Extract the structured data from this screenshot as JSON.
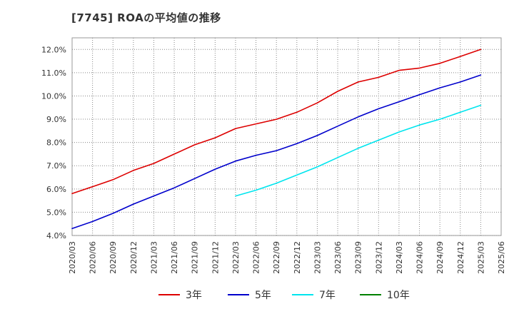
{
  "title": "[7745]  ROAの平均値の推移",
  "chart_data": {
    "type": "line",
    "title": "[7745]  ROAの平均値の推移",
    "xlabel": "",
    "ylabel": "",
    "ylim": [
      4.0,
      12.5
    ],
    "y_ticks": [
      "4.0%",
      "5.0%",
      "6.0%",
      "7.0%",
      "8.0%",
      "9.0%",
      "10.0%",
      "11.0%",
      "12.0%"
    ],
    "grid": true,
    "legend_position": "bottom",
    "x": [
      "2020/03",
      "2020/06",
      "2020/09",
      "2020/12",
      "2021/03",
      "2021/06",
      "2021/09",
      "2021/12",
      "2022/03",
      "2022/06",
      "2022/09",
      "2022/12",
      "2023/03",
      "2023/06",
      "2023/09",
      "2023/12",
      "2024/03",
      "2024/06",
      "2024/09",
      "2024/12",
      "2025/03",
      "2025/06"
    ],
    "series": [
      {
        "name": "3年",
        "color": "#dd0000",
        "values": [
          5.8,
          6.1,
          6.4,
          6.8,
          7.1,
          7.5,
          7.9,
          8.2,
          8.6,
          8.8,
          9.0,
          9.3,
          9.7,
          10.2,
          10.6,
          10.8,
          11.1,
          11.2,
          11.4,
          11.7,
          12.0,
          null
        ]
      },
      {
        "name": "5年",
        "color": "#0000cc",
        "values": [
          4.3,
          4.6,
          4.95,
          5.35,
          5.7,
          6.05,
          6.45,
          6.85,
          7.2,
          7.45,
          7.65,
          7.95,
          8.3,
          8.7,
          9.1,
          9.45,
          9.75,
          10.05,
          10.35,
          10.6,
          10.9,
          null
        ]
      },
      {
        "name": "7年",
        "color": "#00e5ee",
        "values": [
          null,
          null,
          null,
          null,
          null,
          null,
          null,
          null,
          5.7,
          5.95,
          6.25,
          6.6,
          6.95,
          7.35,
          7.75,
          8.1,
          8.45,
          8.75,
          9.0,
          9.3,
          9.6,
          null
        ]
      },
      {
        "name": "10年",
        "color": "#008000",
        "values": [
          null,
          null,
          null,
          null,
          null,
          null,
          null,
          null,
          null,
          null,
          null,
          null,
          null,
          null,
          null,
          null,
          null,
          null,
          null,
          null,
          null,
          null
        ]
      }
    ]
  }
}
